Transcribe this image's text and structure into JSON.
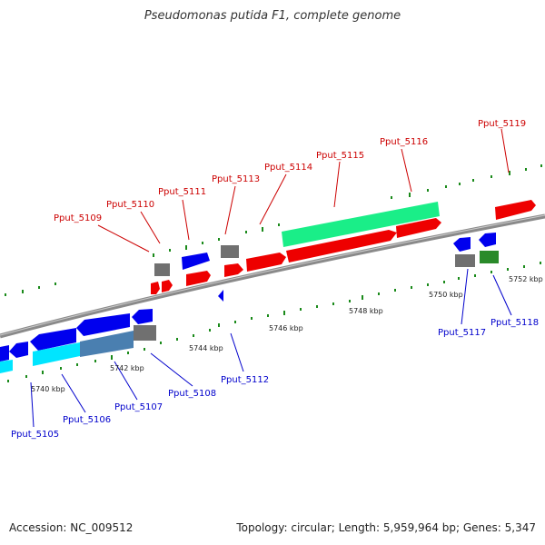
{
  "title": "Pseudomonas putida F1, complete genome",
  "footer": {
    "accession": "Accession: NC_009512",
    "summary": "Topology: circular; Length: 5,959,964 bp; Genes: 5,347"
  },
  "scale_labels": [
    "5740 kbp",
    "5742 kbp",
    "5744 kbp",
    "5746 kbp",
    "5748 kbp",
    "5750 kbp",
    "5752 kbp"
  ],
  "gene_labels_top": [
    "Pput_5109",
    "Pput_5110",
    "Pput_5111",
    "Pput_5113",
    "Pput_5114",
    "Pput_5115",
    "Pput_5116",
    "Pput_5119"
  ],
  "gene_labels_bottom": [
    "Pput_5105",
    "Pput_5106",
    "Pput_5107",
    "Pput_5108",
    "Pput_5112",
    "Pput_5117",
    "Pput_5118"
  ],
  "colors": {
    "forward_cds": "#ee0000",
    "reverse_cds": "#0000ee",
    "rna": "#1aee88",
    "other": "#707070",
    "highlight_cyan": "#00e5ff",
    "steel": "#4a7fb0",
    "green": "#2a8a2a",
    "backbone": "#8a8a8a",
    "ticks": "#1a8a1a",
    "label_red": "#cc0000",
    "label_blue": "#0000cc"
  }
}
